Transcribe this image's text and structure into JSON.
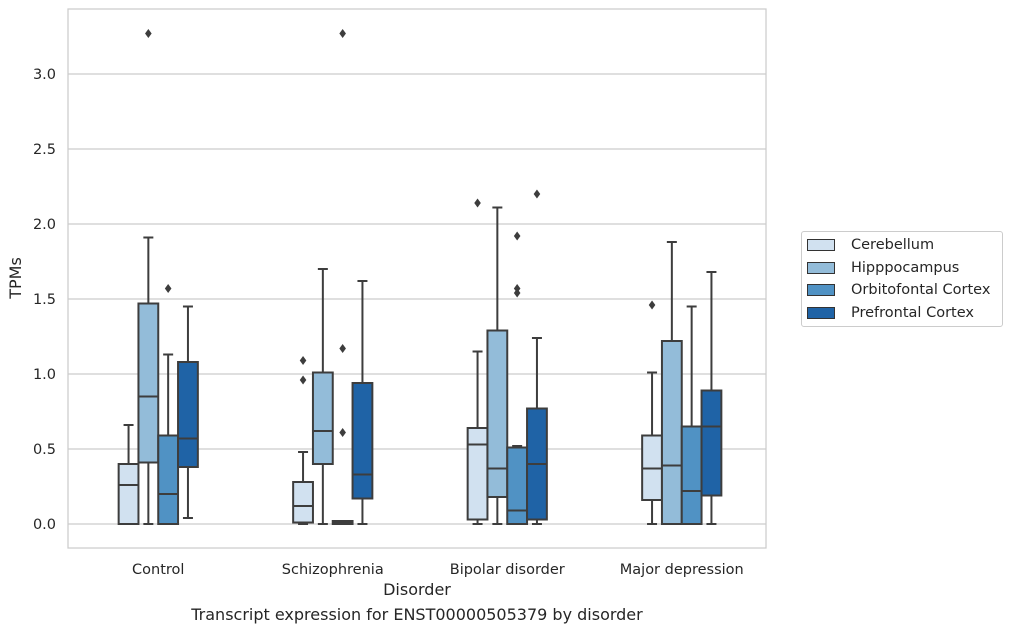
{
  "chart_data": {
    "type": "box",
    "caption": "Transcript expression for ENST00000505379 by disorder",
    "xlabel": "Disorder",
    "ylabel": "TPMs",
    "ylim": [
      -0.16,
      3.44
    ],
    "yticks": [
      "0.0",
      "0.5",
      "1.0",
      "1.5",
      "2.0",
      "2.5",
      "3.0"
    ],
    "ytick_values": [
      0,
      0.5,
      1.0,
      1.5,
      2.0,
      2.5,
      3.0
    ],
    "grid": true,
    "legend_position": "right, outside plot",
    "categories": [
      "Control",
      "Schizophrenia",
      "Bipolar disorder",
      "Major depression"
    ],
    "series": [
      {
        "name": "Cerebellum",
        "color": "#d1e1f0",
        "boxes": [
          {
            "whisker_low": 0.0,
            "q1": 0.0,
            "median": 0.26,
            "q3": 0.4,
            "whisker_high": 0.66,
            "outliers": []
          },
          {
            "whisker_low": 0.0,
            "q1": 0.01,
            "median": 0.12,
            "q3": 0.28,
            "whisker_high": 0.48,
            "outliers": [
              0.96,
              1.09
            ]
          },
          {
            "whisker_low": 0.0,
            "q1": 0.03,
            "median": 0.53,
            "q3": 0.64,
            "whisker_high": 1.15,
            "outliers": [
              2.14
            ]
          },
          {
            "whisker_low": 0.0,
            "q1": 0.16,
            "median": 0.37,
            "q3": 0.59,
            "whisker_high": 1.01,
            "outliers": [
              1.46
            ]
          }
        ]
      },
      {
        "name": "Hipppocampus",
        "color": "#93bcd9",
        "boxes": [
          {
            "whisker_low": 0.0,
            "q1": 0.41,
            "median": 0.85,
            "q3": 1.47,
            "whisker_high": 1.91,
            "outliers": [
              3.27
            ]
          },
          {
            "whisker_low": 0.0,
            "q1": 0.4,
            "median": 0.62,
            "q3": 1.01,
            "whisker_high": 1.7,
            "outliers": []
          },
          {
            "whisker_low": 0.0,
            "q1": 0.18,
            "median": 0.37,
            "q3": 1.29,
            "whisker_high": 2.11,
            "outliers": []
          },
          {
            "whisker_low": 0.0,
            "q1": 0.0,
            "median": 0.39,
            "q3": 1.22,
            "whisker_high": 1.88,
            "outliers": []
          }
        ]
      },
      {
        "name": "Orbitofontal Cortex",
        "color": "#5092c4",
        "boxes": [
          {
            "whisker_low": 0.0,
            "q1": 0.0,
            "median": 0.2,
            "q3": 0.59,
            "whisker_high": 1.13,
            "outliers": [
              1.57
            ]
          },
          {
            "whisker_low": 0.0,
            "q1": 0.0,
            "median": 0.01,
            "q3": 0.02,
            "whisker_high": 0.02,
            "outliers": [
              0.61,
              1.17,
              3.27
            ]
          },
          {
            "whisker_low": 0.0,
            "q1": 0.0,
            "median": 0.09,
            "q3": 0.51,
            "whisker_high": 0.52,
            "outliers": [
              1.54,
              1.57,
              1.92
            ]
          },
          {
            "whisker_low": 0.0,
            "q1": 0.0,
            "median": 0.22,
            "q3": 0.65,
            "whisker_high": 1.45,
            "outliers": []
          }
        ]
      },
      {
        "name": "Prefrontal Cortex",
        "color": "#1f63a6",
        "boxes": [
          {
            "whisker_low": 0.04,
            "q1": 0.38,
            "median": 0.57,
            "q3": 1.08,
            "whisker_high": 1.45,
            "outliers": []
          },
          {
            "whisker_low": 0.0,
            "q1": 0.17,
            "median": 0.33,
            "q3": 0.94,
            "whisker_high": 1.62,
            "outliers": []
          },
          {
            "whisker_low": 0.0,
            "q1": 0.03,
            "median": 0.4,
            "q3": 0.77,
            "whisker_high": 1.24,
            "outliers": [
              2.2
            ]
          },
          {
            "whisker_low": 0.0,
            "q1": 0.19,
            "median": 0.65,
            "q3": 0.89,
            "whisker_high": 1.68,
            "outliers": []
          }
        ]
      }
    ]
  }
}
